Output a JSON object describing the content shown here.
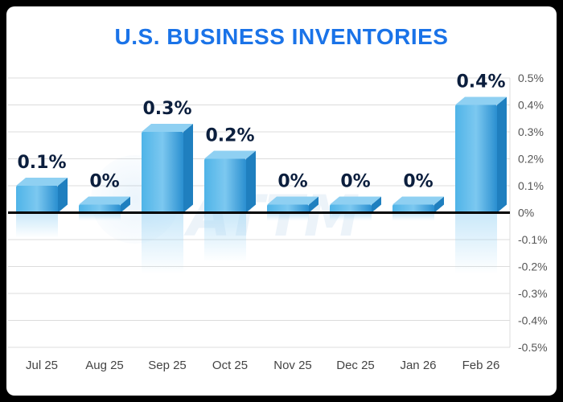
{
  "colors": {
    "title": "#1a73e8",
    "bar_front": "#3aa0dc",
    "bar_top": "#8fd0f2",
    "bar_side": "#1f7fbf",
    "grid": "#dcdcdc",
    "zero_line": "#000000"
  },
  "chart_data": {
    "type": "bar",
    "title": "U.S. BUSINESS INVENTORIES",
    "categories": [
      "Jul 25",
      "Aug 25",
      "Sep 25",
      "Oct 25",
      "Nov 25",
      "Dec 25",
      "Jan 26",
      "Feb 26"
    ],
    "values": [
      0.1,
      0.0,
      0.3,
      0.2,
      0.0,
      0.0,
      0.0,
      0.4
    ],
    "data_labels": [
      "0.1%",
      "0%",
      "0.3%",
      "0.2%",
      "0%",
      "0%",
      "0%",
      "0.4%"
    ],
    "ylim": [
      -0.5,
      0.5
    ],
    "yticks": [
      0.5,
      0.4,
      0.3,
      0.2,
      0.1,
      0,
      -0.1,
      -0.2,
      -0.3,
      -0.4,
      -0.5
    ],
    "ytick_labels": [
      "0.5%",
      "0.4%",
      "0.3%",
      "0.2%",
      "0.1%",
      "0%",
      "-0.1%",
      "-0.2%",
      "-0.3%",
      "-0.4%",
      "-0.5%"
    ],
    "y_axis_side": "right",
    "grid": true,
    "xlabel": "",
    "ylabel": ""
  },
  "watermark": "ATTM"
}
